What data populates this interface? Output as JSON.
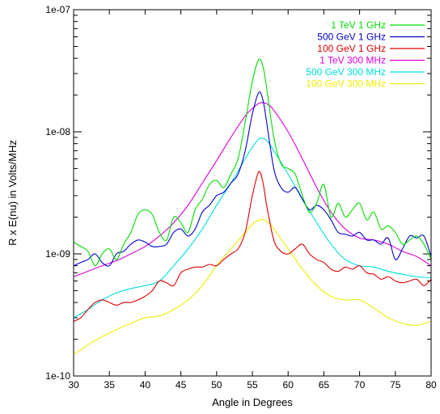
{
  "chart_data": {
    "type": "line",
    "xlabel": "Angle in Degrees",
    "ylabel": "R x E(nu) in Volts/MHz",
    "xlim": [
      30,
      80
    ],
    "ylim": [
      1e-10,
      1e-07
    ],
    "yscale": "log",
    "legend_position": "top-right",
    "x_ticks": [
      30,
      35,
      40,
      45,
      50,
      55,
      60,
      65,
      70,
      75,
      80
    ],
    "y_ticks": [
      {
        "value": 1e-10,
        "label": "1e-10"
      },
      {
        "value": 1e-09,
        "label": "1e-09"
      },
      {
        "value": 1e-08,
        "label": "1e-08"
      },
      {
        "value": 1e-07,
        "label": "1e-07"
      }
    ],
    "series": [
      {
        "name": "1 TeV 1 GHz",
        "color": "#00dd00",
        "points": [
          [
            30,
            1.25e-09
          ],
          [
            31,
            1.15e-09
          ],
          [
            32,
            1.05e-09
          ],
          [
            33,
            8e-10
          ],
          [
            34,
            1e-09
          ],
          [
            35,
            1.1e-09
          ],
          [
            36,
            9e-10
          ],
          [
            37,
            1.2e-09
          ],
          [
            38,
            1.5e-09
          ],
          [
            39,
            2.1e-09
          ],
          [
            40,
            2.3e-09
          ],
          [
            41,
            2.1e-09
          ],
          [
            42,
            1.5e-09
          ],
          [
            43,
            1.3e-09
          ],
          [
            44,
            2e-09
          ],
          [
            45,
            1.8e-09
          ],
          [
            46,
            1.5e-09
          ],
          [
            47,
            2.3e-09
          ],
          [
            48,
            2.8e-09
          ],
          [
            49,
            3.7e-09
          ],
          [
            50,
            4e-09
          ],
          [
            51,
            3.5e-09
          ],
          [
            52,
            4.5e-09
          ],
          [
            53,
            6e-09
          ],
          [
            54,
            1.2e-08
          ],
          [
            55,
            2.6e-08
          ],
          [
            55.9,
            3.9e-08
          ],
          [
            56.5,
            3.4e-08
          ],
          [
            57,
            2.3e-08
          ],
          [
            58,
            9e-09
          ],
          [
            59,
            5.5e-09
          ],
          [
            60,
            5e-09
          ],
          [
            61,
            4.5e-09
          ],
          [
            62,
            3e-09
          ],
          [
            63,
            2.2e-09
          ],
          [
            64,
            2.6e-09
          ],
          [
            65,
            3.7e-09
          ],
          [
            66,
            2e-09
          ],
          [
            67,
            2.6e-09
          ],
          [
            68,
            2e-09
          ],
          [
            69,
            2.3e-09
          ],
          [
            70,
            2.6e-09
          ],
          [
            71,
            1.9e-09
          ],
          [
            72,
            2.2e-09
          ],
          [
            73,
            1.6e-09
          ],
          [
            74,
            1.7e-09
          ],
          [
            75,
            1.5e-09
          ],
          [
            76,
            1.2e-09
          ],
          [
            77,
            1.3e-09
          ],
          [
            78,
            1.4e-09
          ],
          [
            79,
            1.2e-09
          ],
          [
            80,
            9e-10
          ]
        ]
      },
      {
        "name": "500 GeV 1 GHz",
        "color": "#0000cc",
        "points": [
          [
            30,
            8e-10
          ],
          [
            31,
            8.5e-10
          ],
          [
            32,
            9e-10
          ],
          [
            33,
            1e-09
          ],
          [
            34,
            8.5e-10
          ],
          [
            35,
            8e-10
          ],
          [
            36,
            1e-09
          ],
          [
            37,
            1.05e-09
          ],
          [
            38,
            1.2e-09
          ],
          [
            39,
            1.3e-09
          ],
          [
            40,
            1.25e-09
          ],
          [
            41,
            1.15e-09
          ],
          [
            42,
            1.15e-09
          ],
          [
            43,
            1.2e-09
          ],
          [
            44,
            1.5e-09
          ],
          [
            45,
            1.6e-09
          ],
          [
            46,
            1.4e-09
          ],
          [
            47,
            1.6e-09
          ],
          [
            48,
            2.2e-09
          ],
          [
            49,
            2.5e-09
          ],
          [
            50,
            3e-09
          ],
          [
            51,
            3.2e-09
          ],
          [
            52,
            3.8e-09
          ],
          [
            53,
            4.5e-09
          ],
          [
            54,
            7e-09
          ],
          [
            55,
            1.4e-08
          ],
          [
            55.9,
            2.1e-08
          ],
          [
            56.5,
            1.8e-08
          ],
          [
            57,
            1.2e-08
          ],
          [
            58,
            5e-09
          ],
          [
            59,
            3.5e-09
          ],
          [
            60,
            3.2e-09
          ],
          [
            61,
            3.5e-09
          ],
          [
            62,
            2.8e-09
          ],
          [
            63,
            2.3e-09
          ],
          [
            64,
            2.5e-09
          ],
          [
            65,
            2.3e-09
          ],
          [
            66,
            1.9e-09
          ],
          [
            67,
            1.5e-09
          ],
          [
            68,
            1.45e-09
          ],
          [
            69,
            1.4e-09
          ],
          [
            70,
            1.5e-09
          ],
          [
            71,
            1.3e-09
          ],
          [
            72,
            1.3e-09
          ],
          [
            73,
            1.2e-09
          ],
          [
            74,
            1.35e-09
          ],
          [
            75,
            9e-10
          ],
          [
            76,
            1.1e-09
          ],
          [
            77,
            1.4e-09
          ],
          [
            78,
            1.35e-09
          ],
          [
            79,
            1.4e-09
          ],
          [
            80,
            9.5e-10
          ]
        ]
      },
      {
        "name": "100 GeV 1 GHz",
        "color": "#dd0000",
        "points": [
          [
            30,
            2.8e-10
          ],
          [
            31,
            3e-10
          ],
          [
            32,
            3.5e-10
          ],
          [
            33,
            4e-10
          ],
          [
            34,
            4.2e-10
          ],
          [
            35,
            4e-10
          ],
          [
            36,
            3.8e-10
          ],
          [
            37,
            4e-10
          ],
          [
            38,
            4e-10
          ],
          [
            39,
            4.2e-10
          ],
          [
            40,
            4.5e-10
          ],
          [
            41,
            5e-10
          ],
          [
            42,
            6e-10
          ],
          [
            43,
            5.8e-10
          ],
          [
            44,
            5.5e-10
          ],
          [
            45,
            7e-10
          ],
          [
            46,
            7.5e-10
          ],
          [
            47,
            7.8e-10
          ],
          [
            48,
            7.8e-10
          ],
          [
            49,
            8.2e-10
          ],
          [
            50,
            8e-10
          ],
          [
            51,
            9e-10
          ],
          [
            52,
            1e-09
          ],
          [
            53,
            1.1e-09
          ],
          [
            54,
            1.5e-09
          ],
          [
            55,
            3e-09
          ],
          [
            55.9,
            4.7e-09
          ],
          [
            56.5,
            3.8e-09
          ],
          [
            57,
            2.5e-09
          ],
          [
            58,
            1.3e-09
          ],
          [
            59,
            1.05e-09
          ],
          [
            60,
            1e-09
          ],
          [
            61,
            1.1e-09
          ],
          [
            62,
            1.2e-09
          ],
          [
            63,
            1e-09
          ],
          [
            64,
            9e-10
          ],
          [
            65,
            8.5e-10
          ],
          [
            66,
            7.5e-10
          ],
          [
            67,
            7.2e-10
          ],
          [
            68,
            7.8e-10
          ],
          [
            69,
            7.5e-10
          ],
          [
            70,
            8e-10
          ],
          [
            71,
            7e-10
          ],
          [
            72,
            6.8e-10
          ],
          [
            73,
            6.2e-10
          ],
          [
            74,
            6.5e-10
          ],
          [
            75,
            6e-10
          ],
          [
            76,
            5.8e-10
          ],
          [
            77,
            6e-10
          ],
          [
            78,
            6.2e-10
          ],
          [
            79,
            5.5e-10
          ],
          [
            80,
            6.2e-10
          ]
        ]
      },
      {
        "name": "1 TeV 300 MHz",
        "color": "#dd00dd",
        "points": [
          [
            30,
            6.5e-10
          ],
          [
            32,
            7.2e-10
          ],
          [
            34,
            8e-10
          ],
          [
            36,
            8.8e-10
          ],
          [
            38,
            1e-09
          ],
          [
            40,
            1.15e-09
          ],
          [
            42,
            1.4e-09
          ],
          [
            44,
            1.8e-09
          ],
          [
            46,
            2.5e-09
          ],
          [
            48,
            3.8e-09
          ],
          [
            50,
            5.8e-09
          ],
          [
            52,
            9e-09
          ],
          [
            54,
            1.35e-08
          ],
          [
            55,
            1.55e-08
          ],
          [
            56,
            1.72e-08
          ],
          [
            57,
            1.7e-08
          ],
          [
            58,
            1.5e-08
          ],
          [
            60,
            1e-08
          ],
          [
            62,
            6e-09
          ],
          [
            64,
            3.5e-09
          ],
          [
            66,
            2.2e-09
          ],
          [
            68,
            1.6e-09
          ],
          [
            70,
            1.35e-09
          ],
          [
            72,
            1.3e-09
          ],
          [
            74,
            1.2e-09
          ],
          [
            76,
            1.05e-09
          ],
          [
            78,
            9.5e-10
          ],
          [
            80,
            8e-10
          ]
        ]
      },
      {
        "name": "500 GeV 300 MHz",
        "color": "#00dddd",
        "points": [
          [
            30,
            3e-10
          ],
          [
            32,
            3.5e-10
          ],
          [
            34,
            4.2e-10
          ],
          [
            36,
            4.8e-10
          ],
          [
            38,
            5.2e-10
          ],
          [
            40,
            5.5e-10
          ],
          [
            42,
            6e-10
          ],
          [
            44,
            8e-10
          ],
          [
            46,
            1.1e-09
          ],
          [
            48,
            1.6e-09
          ],
          [
            50,
            2.5e-09
          ],
          [
            52,
            3.8e-09
          ],
          [
            54,
            6e-09
          ],
          [
            55,
            7.5e-09
          ],
          [
            56,
            8.8e-09
          ],
          [
            57,
            8.5e-09
          ],
          [
            58,
            7e-09
          ],
          [
            60,
            4.5e-09
          ],
          [
            62,
            2.8e-09
          ],
          [
            64,
            1.8e-09
          ],
          [
            66,
            1.2e-09
          ],
          [
            68,
            9e-10
          ],
          [
            70,
            8e-10
          ],
          [
            72,
            7.8e-10
          ],
          [
            74,
            7.2e-10
          ],
          [
            76,
            6.8e-10
          ],
          [
            78,
            6.5e-10
          ],
          [
            80,
            6.4e-10
          ]
        ]
      },
      {
        "name": "100 GeV 300 MHz",
        "color": "#eeee00",
        "points": [
          [
            30,
            1.5e-10
          ],
          [
            32,
            1.8e-10
          ],
          [
            34,
            2.1e-10
          ],
          [
            36,
            2.4e-10
          ],
          [
            38,
            2.7e-10
          ],
          [
            40,
            3e-10
          ],
          [
            42,
            3.1e-10
          ],
          [
            44,
            3.5e-10
          ],
          [
            46,
            4.2e-10
          ],
          [
            48,
            5.5e-10
          ],
          [
            50,
            8e-10
          ],
          [
            52,
            1.1e-09
          ],
          [
            54,
            1.5e-09
          ],
          [
            55,
            1.75e-09
          ],
          [
            56,
            1.9e-09
          ],
          [
            57,
            1.85e-09
          ],
          [
            58,
            1.6e-09
          ],
          [
            60,
            1.1e-09
          ],
          [
            62,
            7.5e-10
          ],
          [
            64,
            5.5e-10
          ],
          [
            66,
            4.5e-10
          ],
          [
            68,
            4.2e-10
          ],
          [
            70,
            4.2e-10
          ],
          [
            72,
            3.6e-10
          ],
          [
            74,
            3e-10
          ],
          [
            76,
            2.7e-10
          ],
          [
            78,
            2.6e-10
          ],
          [
            80,
            2.8e-10
          ]
        ]
      }
    ]
  }
}
